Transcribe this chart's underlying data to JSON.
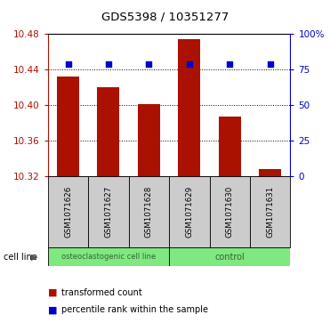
{
  "title": "GDS5398 / 10351277",
  "samples": [
    "GSM1071626",
    "GSM1071627",
    "GSM1071628",
    "GSM1071629",
    "GSM1071630",
    "GSM1071631"
  ],
  "bar_values": [
    10.432,
    10.42,
    10.401,
    10.474,
    10.387,
    10.328
  ],
  "percentile_values": [
    79,
    79,
    79,
    79,
    79,
    79
  ],
  "bar_color": "#aa1100",
  "percentile_color": "#0000cc",
  "ylim_left": [
    10.32,
    10.48
  ],
  "ylim_right": [
    0,
    100
  ],
  "yticks_left": [
    10.32,
    10.36,
    10.4,
    10.44,
    10.48
  ],
  "yticks_right": [
    0,
    25,
    50,
    75,
    100
  ],
  "ytick_labels_right": [
    "0",
    "25",
    "50",
    "75",
    "100%"
  ],
  "group1_label": "osteoclastogenic cell line",
  "group2_label": "control",
  "group1_count": 3,
  "group2_count": 3,
  "group_bg_color": "#80e880",
  "sample_box_color": "#cccccc",
  "legend_bar_label": "transformed count",
  "legend_pct_label": "percentile rank within the sample",
  "cell_line_label": "cell line",
  "group_text_color": "#336633",
  "baseline": 10.32,
  "bar_width": 0.55
}
